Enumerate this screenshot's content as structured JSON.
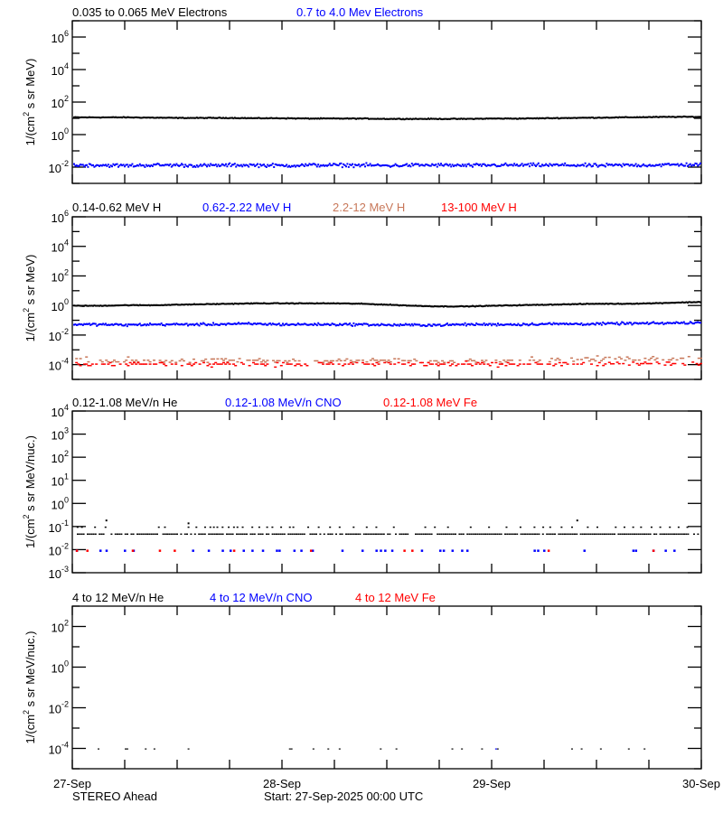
{
  "footer": {
    "spacecraft": "STEREO Ahead",
    "start": "Start: 27-Sep-2025 00:00 UTC"
  },
  "colors": {
    "black": "#000000",
    "blue": "#0000ff",
    "orange": "#c8785a",
    "red": "#ff0000"
  },
  "chart_data": [
    {
      "type": "scatter",
      "ylabel": "1/(cm² s sr MeV)",
      "ylabel_parts": [
        "1/(cm",
        "2",
        " s sr MeV)"
      ],
      "yscale": "log",
      "ylim": [
        0.001,
        10000000
      ],
      "yticks": [
        {
          "base": "10",
          "exp": "6",
          "value": 1000000
        },
        {
          "base": "10",
          "exp": "4",
          "value": 10000
        },
        {
          "base": "10",
          "exp": "2",
          "value": 100
        },
        {
          "base": "10",
          "exp": "0",
          "value": 1
        },
        {
          "base": "10",
          "exp": "-2",
          "value": 0.01
        }
      ],
      "x_hours_step": 3,
      "series": [
        {
          "name": "0.035 to 0.065 MeV Electrons",
          "color": "#000000",
          "values": [
            13,
            13,
            13,
            12.5,
            12,
            12,
            12,
            11.5,
            11.5,
            11,
            11,
            11,
            10.5,
            10.5,
            10.5,
            10.5,
            11,
            11,
            11.5,
            12,
            12.5,
            13,
            13.5,
            14,
            14
          ]
        },
        {
          "name": "0.7 to 4.0 Mev Electrons",
          "color": "#0000ff",
          "values": [
            0.015,
            0.015,
            0.014,
            0.015,
            0.015,
            0.014,
            0.015,
            0.015,
            0.014,
            0.015,
            0.015,
            0.015,
            0.014,
            0.015,
            0.015,
            0.014,
            0.015,
            0.015,
            0.015,
            0.015,
            0.014,
            0.015,
            0.015,
            0.016,
            0.016
          ]
        }
      ]
    },
    {
      "type": "scatter",
      "ylabel": "1/(cm² s sr MeV)",
      "ylabel_parts": [
        "1/(cm",
        "2",
        " s sr MeV)"
      ],
      "yscale": "log",
      "ylim": [
        1e-05,
        1000000
      ],
      "yticks": [
        {
          "base": "10",
          "exp": "6",
          "value": 1000000
        },
        {
          "base": "10",
          "exp": "4",
          "value": 10000
        },
        {
          "base": "10",
          "exp": "2",
          "value": 100
        },
        {
          "base": "10",
          "exp": "0",
          "value": 1
        },
        {
          "base": "10",
          "exp": "-2",
          "value": 0.01
        },
        {
          "base": "10",
          "exp": "-4",
          "value": 0.0001
        }
      ],
      "x_hours_step": 3,
      "series": [
        {
          "name": "0.14-0.62 MeV H",
          "color": "#000000",
          "values": [
            1.1,
            1.1,
            1.2,
            1.2,
            1.3,
            1.4,
            1.5,
            1.6,
            1.6,
            1.6,
            1.6,
            1.5,
            1.3,
            1.1,
            1.0,
            1.0,
            1.1,
            1.2,
            1.3,
            1.4,
            1.5,
            1.5,
            1.6,
            1.8,
            2.0
          ]
        },
        {
          "name": "0.62-2.22 MeV H",
          "color": "#0000ff",
          "values": [
            0.06,
            0.06,
            0.055,
            0.06,
            0.06,
            0.06,
            0.065,
            0.065,
            0.06,
            0.06,
            0.06,
            0.06,
            0.055,
            0.055,
            0.055,
            0.06,
            0.06,
            0.06,
            0.065,
            0.065,
            0.065,
            0.07,
            0.07,
            0.075,
            0.08
          ]
        },
        {
          "name": "2.2-12 MeV H",
          "color": "#c8785a",
          "values": [
            0.00022,
            0.00022,
            0.00022,
            0.00022,
            0.0002,
            0.0002,
            0.00022,
            0.00022,
            0.0002,
            0.0002,
            0.0002,
            0.00022,
            0.00022,
            0.0002,
            0.0002,
            0.0002,
            0.00022,
            0.00022,
            0.00022,
            0.00024,
            0.00026,
            0.00028,
            0.0003,
            0.0003,
            0.0003
          ]
        },
        {
          "name": "13-100 MeV H",
          "color": "#ff0000",
          "values": [
            0.00012,
            0.00012,
            0.00012,
            0.00012,
            0.00012,
            0.00012,
            0.00012,
            0.00012,
            0.00012,
            0.00012,
            0.00012,
            0.00012,
            0.00012,
            0.00012,
            0.00012,
            0.00012,
            0.00012,
            0.00012,
            0.00012,
            0.00012,
            0.00012,
            0.00013,
            0.00013,
            0.00013,
            0.00013
          ]
        }
      ]
    },
    {
      "type": "scatter",
      "ylabel": "1/(cm² s sr MeV/nuc.)",
      "ylabel_parts": [
        "1/(cm",
        "2",
        " s sr MeV/nuc.)"
      ],
      "yscale": "log",
      "ylim": [
        0.001,
        10000
      ],
      "yticks": [
        {
          "base": "10",
          "exp": "4",
          "value": 10000
        },
        {
          "base": "10",
          "exp": "3",
          "value": 1000
        },
        {
          "base": "10",
          "exp": "2",
          "value": 100
        },
        {
          "base": "10",
          "exp": "1",
          "value": 10
        },
        {
          "base": "10",
          "exp": "0",
          "value": 1
        },
        {
          "base": "10",
          "exp": "-1",
          "value": 0.1
        },
        {
          "base": "10",
          "exp": "-2",
          "value": 0.01
        },
        {
          "base": "10",
          "exp": "-3",
          "value": 0.001
        }
      ],
      "series": [
        {
          "name": "0.12-1.08 MeV/n He",
          "color": "#000000",
          "baseline_value": 0.05,
          "points": [
            {
              "h": 3.8,
              "v": 0.2
            },
            {
              "h": 57.7,
              "v": 0.2
            },
            {
              "h": 13.2,
              "v": 0.15
            }
          ],
          "elevated_value": 0.1,
          "elevated_hours": [
            0.5,
            1.0,
            2.5,
            3.7,
            9.8,
            10.5,
            13.2,
            14.1,
            15.1,
            15.7,
            16.1,
            16.5,
            17.1,
            17.8,
            18.4,
            18.8,
            19.4,
            20.5,
            21.3,
            22.2,
            22.8,
            23.8,
            24.8,
            25.2,
            26.9,
            28.1,
            29.4,
            30.5,
            32.1,
            33.6,
            34.7,
            36.7,
            40.3,
            41.4,
            42.9,
            45.5,
            47.6,
            49.6,
            51.2,
            52.8,
            53.8,
            54.6,
            55.9,
            57.1,
            58.9,
            60.0,
            62.1,
            63.1,
            64.1,
            65.0,
            66.2,
            67.2,
            68.3,
            69.3,
            70.3
          ]
        },
        {
          "name": "0.12-1.08 MeV/n CNO",
          "color": "#0000ff",
          "value": 0.01,
          "hours": [
            0.4,
            3.1,
            3.8,
            5.9,
            6.9,
            13.7,
            15.5,
            17.1,
            18.0,
            19.5,
            20.5,
            21.7,
            23.3,
            23.6,
            25.3,
            26.1,
            27.4,
            30.8,
            33.1,
            34.7,
            35.2,
            35.7,
            36.5,
            39.9,
            42.0,
            42.4,
            43.4,
            44.5,
            45.1,
            52.8,
            53.2,
            53.9,
            58.5,
            64.1,
            64.4,
            66.4,
            67.8,
            68.8
          ]
        },
        {
          "name": "0.12-1.08 MeV Fe",
          "color": "#ff0000",
          "value": 0.01,
          "hours": [
            0.4,
            1.6,
            6.8,
            9.9,
            11.6,
            18.4,
            27.2,
            37.9,
            38.8,
            54.4,
            66.4
          ]
        }
      ]
    },
    {
      "type": "scatter",
      "ylabel": "1/(cm² s sr MeV/nuc.)",
      "ylabel_parts": [
        "1/(cm",
        "2",
        " s sr MeV/nuc.)"
      ],
      "yscale": "log",
      "ylim": [
        1e-05,
        1000
      ],
      "yticks": [
        {
          "base": "10",
          "exp": "2",
          "value": 100
        },
        {
          "base": "10",
          "exp": "0",
          "value": 1
        },
        {
          "base": "10",
          "exp": "-2",
          "value": 0.01
        },
        {
          "base": "10",
          "exp": "-4",
          "value": 0.0001
        }
      ],
      "series": [
        {
          "name": "4 to 12 MeV/n He",
          "color": "#000000",
          "value": 0.0001,
          "hours": [
            2.9,
            6.0,
            6.2,
            8.3,
            9.3,
            13.2,
            24.8,
            25.0,
            27.5,
            29.2,
            30.5,
            35.2,
            37.0,
            43.4,
            44.5,
            46.8,
            48.6,
            57.1,
            58.2,
            60.4,
            63.6,
            65.4
          ]
        },
        {
          "name": "4 to 12 MeV/n CNO",
          "color": "#0000ff",
          "value": 0.0001,
          "hours": [
            48.4
          ]
        },
        {
          "name": "4 to 12 MeV Fe",
          "color": "#ff0000",
          "value": 0.0001,
          "hours": []
        }
      ]
    }
  ],
  "xaxis": {
    "range_hours": [
      0,
      72
    ],
    "ticks": [
      {
        "label": "27-Sep",
        "hour": 0
      },
      {
        "label": "28-Sep",
        "hour": 24
      },
      {
        "label": "29-Sep",
        "hour": 48
      },
      {
        "label": "30-Sep",
        "hour": 72
      }
    ],
    "minor_step_hours": 6
  }
}
